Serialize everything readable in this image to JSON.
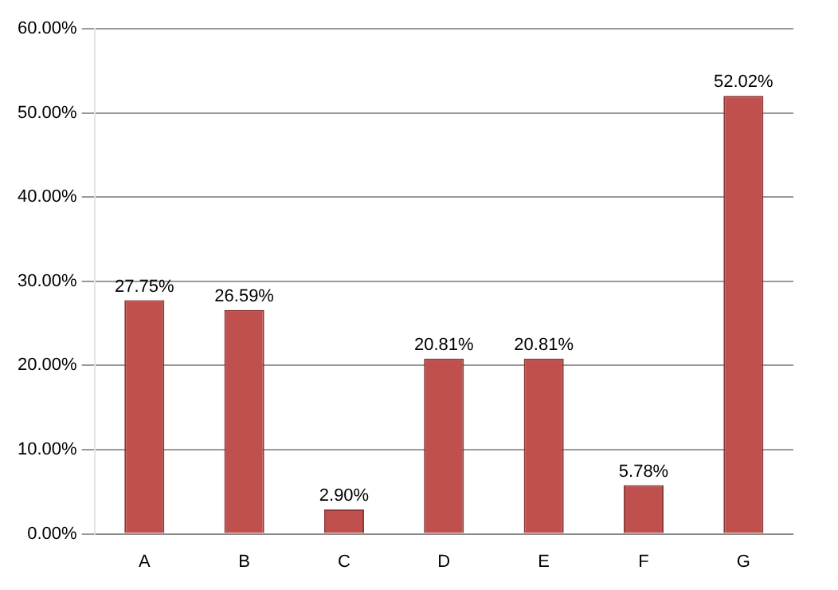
{
  "chart_data": {
    "type": "bar",
    "categories": [
      "A",
      "B",
      "C",
      "D",
      "E",
      "F",
      "G"
    ],
    "values": [
      27.75,
      26.59,
      2.9,
      20.81,
      20.81,
      5.78,
      52.02
    ],
    "value_labels": [
      "27.75%",
      "26.59%",
      "2.90%",
      "20.81%",
      "20.81%",
      "5.78%",
      "52.02%"
    ],
    "color": "#c0504d",
    "ylim": [
      0,
      60
    ],
    "yticks": [
      {
        "value": 0,
        "label": "0.00%"
      },
      {
        "value": 10,
        "label": "10.00%"
      },
      {
        "value": 20,
        "label": "20.00%"
      },
      {
        "value": 30,
        "label": "30.00%"
      },
      {
        "value": 40,
        "label": "40.00%"
      },
      {
        "value": 50,
        "label": "50.00%"
      },
      {
        "value": 60,
        "label": "60.00%"
      }
    ],
    "grid": "y"
  }
}
